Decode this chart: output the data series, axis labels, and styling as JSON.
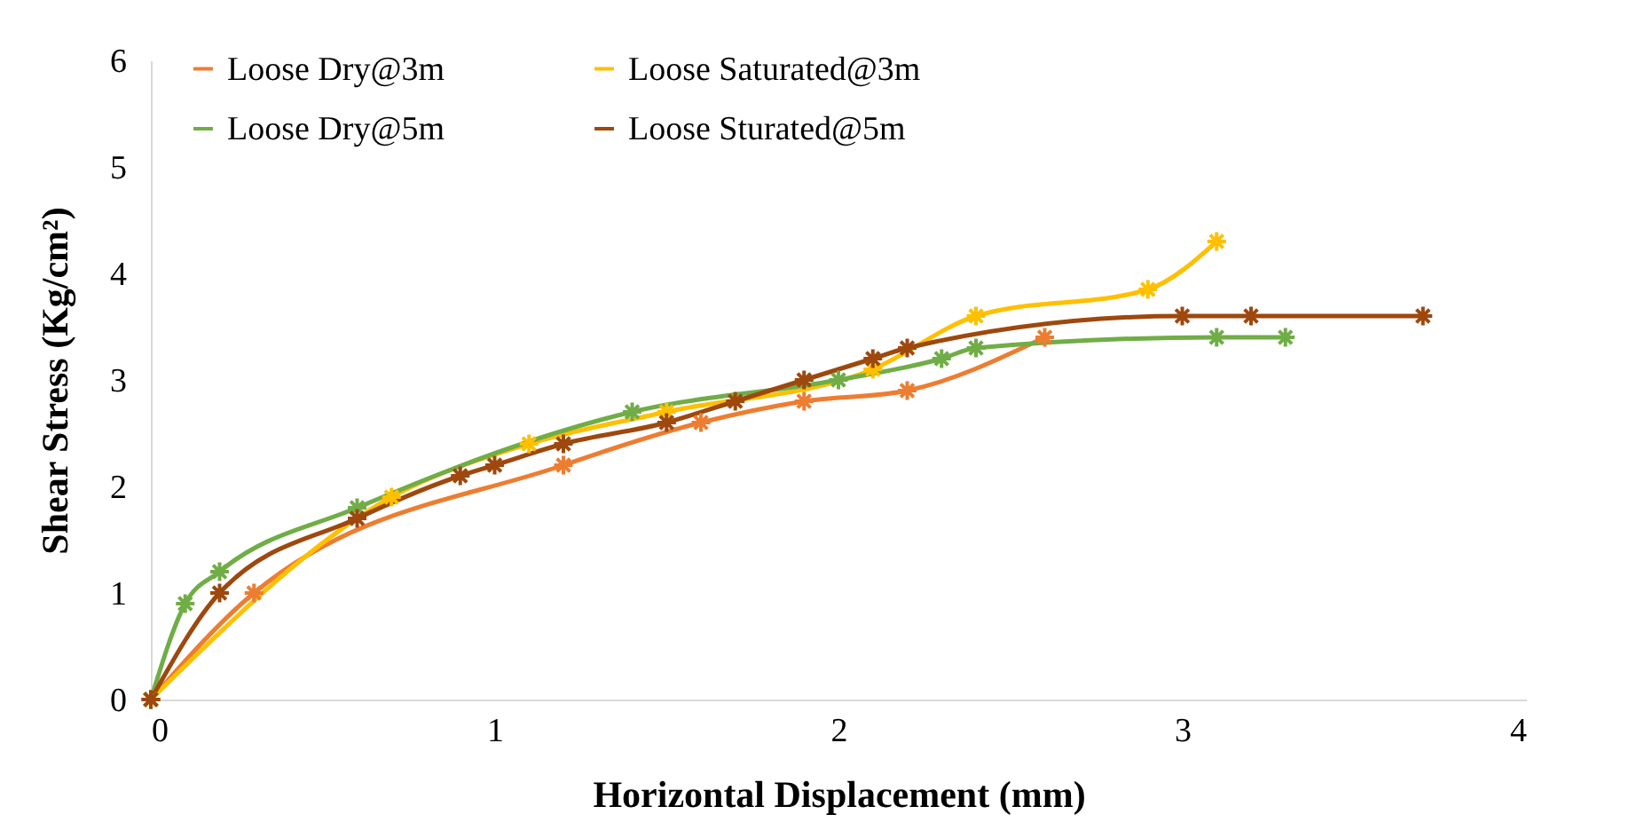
{
  "chart_data": {
    "type": "line",
    "xlabel": "Horizontal Displacement (mm)",
    "ylabel": "Shear Stress (Kg/cm²)",
    "xlim": [
      0,
      4
    ],
    "xticks": [
      0,
      1,
      2,
      3,
      4
    ],
    "ylim": [
      0,
      6
    ],
    "yticks": [
      0,
      1,
      2,
      3,
      4,
      5,
      6
    ],
    "grid": false,
    "legend": "top",
    "marker": "cross",
    "line_style": "solid",
    "series": [
      {
        "name": "Loose Dry@3m",
        "color": "#ed7d31",
        "x": [
          0,
          0.3,
          1.2,
          1.6,
          1.9,
          2.2,
          2.6
        ],
        "values": [
          0,
          1.0,
          2.2,
          2.6,
          2.8,
          2.9,
          3.4
        ]
      },
      {
        "name": "Loose Saturated@3m",
        "color": "#ffc000",
        "x": [
          0,
          0.7,
          1.1,
          1.5,
          2.1,
          2.4,
          2.9,
          3.1
        ],
        "values": [
          0,
          1.9,
          2.4,
          2.7,
          3.1,
          3.6,
          3.85,
          4.3
        ]
      },
      {
        "name": "Loose Dry@5m",
        "color": "#70ad47",
        "x": [
          0,
          0.1,
          0.2,
          0.6,
          1.4,
          2.0,
          2.3,
          2.4,
          3.1,
          3.3
        ],
        "values": [
          0,
          0.9,
          1.2,
          1.8,
          2.7,
          3.0,
          3.2,
          3.3,
          3.4,
          3.4
        ]
      },
      {
        "name": "Loose Sturated@5m",
        "color": "#9e480e",
        "x": [
          0,
          0.2,
          0.6,
          0.9,
          1.0,
          1.2,
          1.5,
          1.7,
          1.9,
          2.1,
          2.2,
          3.0,
          3.2,
          3.7
        ],
        "values": [
          0,
          1.0,
          1.7,
          2.1,
          2.2,
          2.4,
          2.6,
          2.8,
          3.0,
          3.2,
          3.3,
          3.6,
          3.6,
          3.6
        ]
      }
    ]
  }
}
